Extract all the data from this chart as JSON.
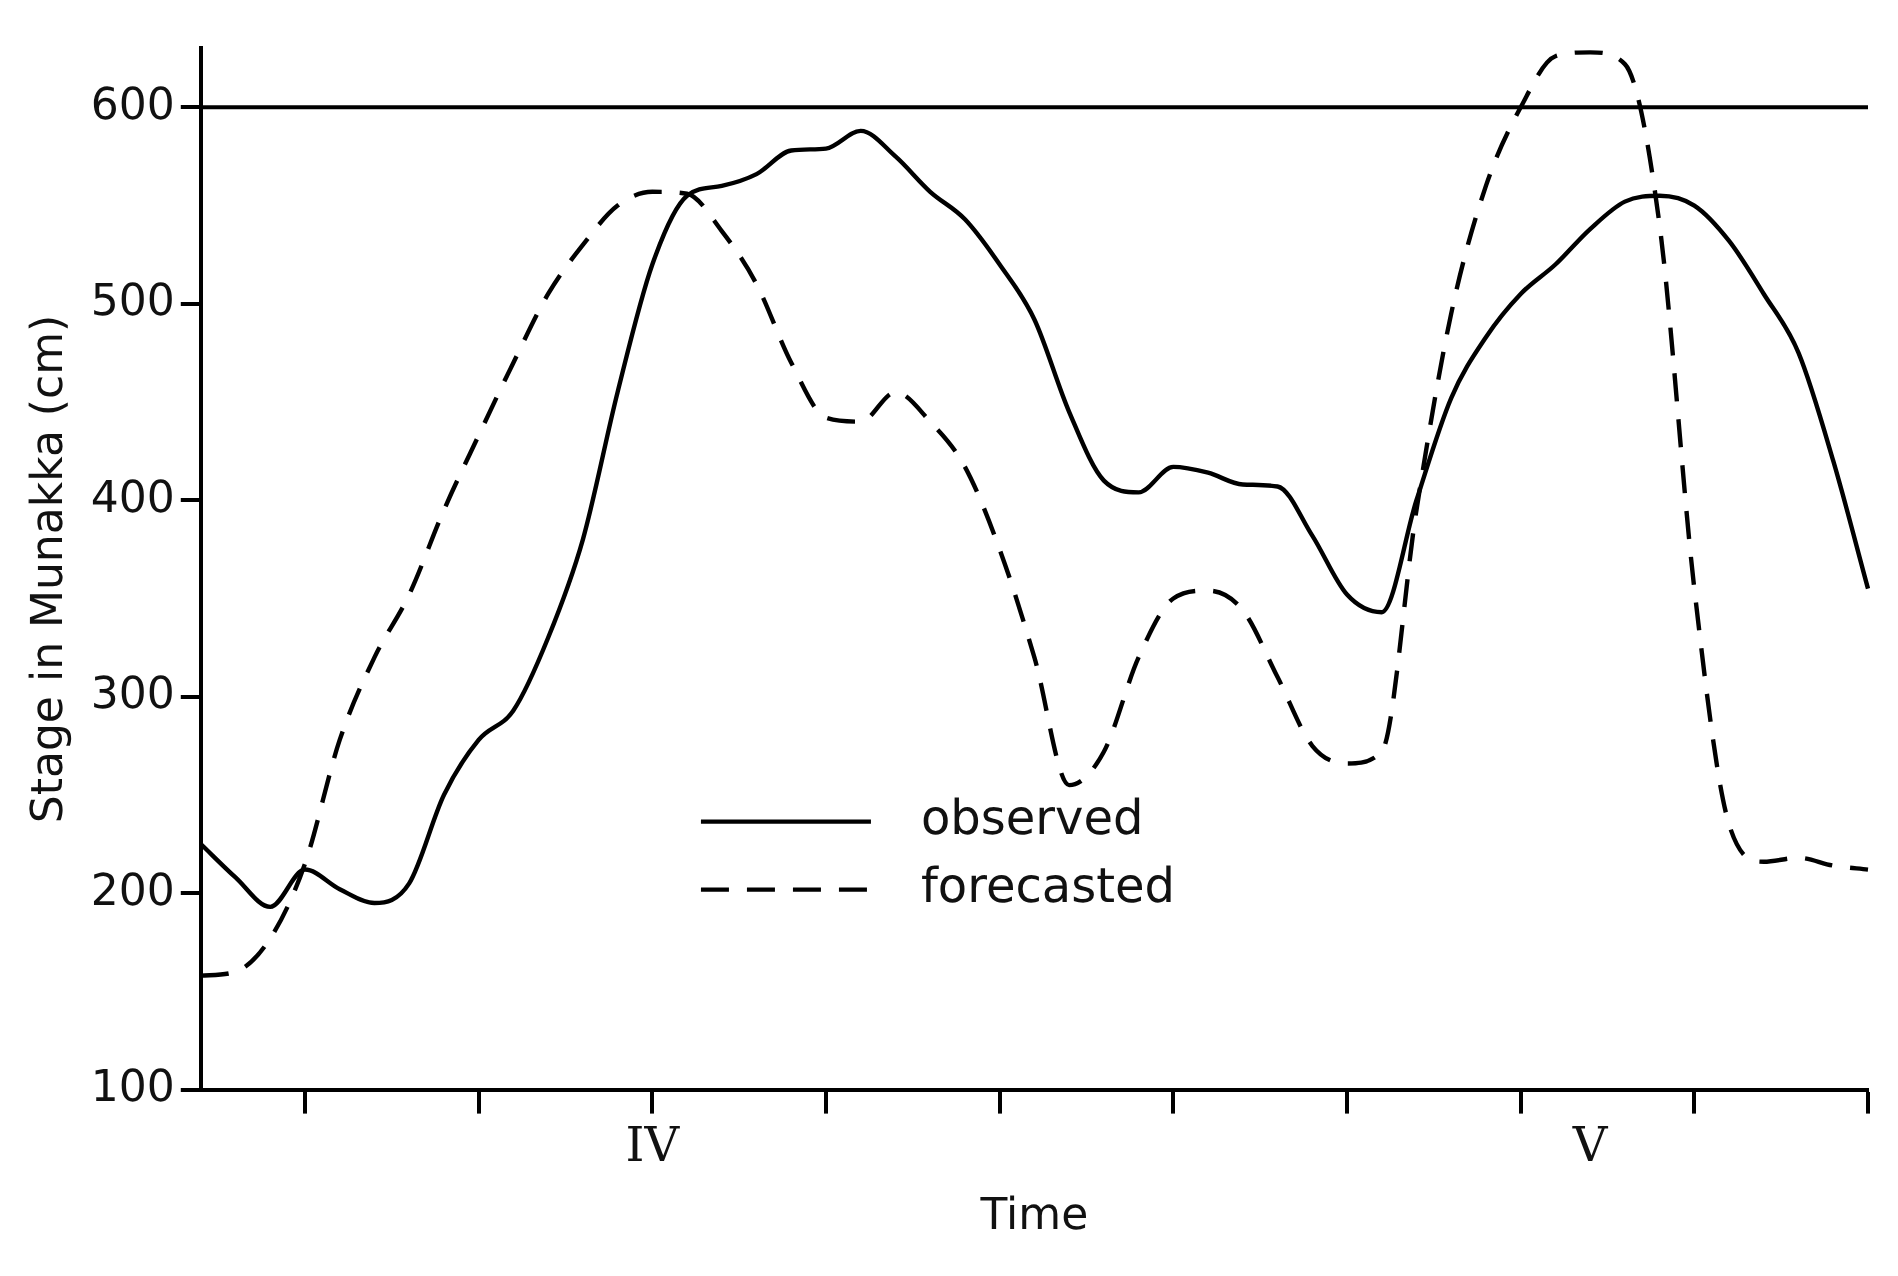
{
  "chart_data": {
    "type": "line",
    "xlabel": "Time",
    "ylabel": "Stage in Munakka (cm)",
    "categories": [
      null,
      null,
      null,
      null,
      null,
      null,
      null,
      null,
      null,
      null,
      null,
      null,
      null,
      "IV",
      null,
      null,
      null,
      null,
      null,
      null,
      null,
      null,
      null,
      null,
      null,
      null,
      null,
      null,
      null,
      null,
      null,
      null,
      null,
      null,
      null,
      null,
      null,
      null,
      null,
      null,
      "V",
      null,
      null,
      null,
      null,
      null,
      null,
      null,
      null
    ],
    "ylim": [
      100,
      630
    ],
    "yticks": [
      100,
      200,
      300,
      400,
      500,
      600
    ],
    "grid": false,
    "legend": "bottom",
    "marker": "none",
    "ref_lines": [
      {
        "axis": "y",
        "value": 600,
        "color": "#000000",
        "line_style": "solid"
      }
    ],
    "series": [
      {
        "name": "observed",
        "color": "#000000",
        "line_style": "solid",
        "values": [
          225,
          208,
          193,
          212,
          202,
          195,
          205,
          250,
          278,
          293,
          330,
          380,
          455,
          520,
          555,
          560,
          566,
          578,
          579,
          588,
          575,
          557,
          543,
          520,
          492,
          445,
          410,
          404,
          417,
          414,
          408,
          407,
          382,
          352,
          343,
          400,
          452,
          483,
          505,
          520,
          538,
          552,
          555,
          550,
          532,
          505,
          475,
          420,
          355
        ]
      },
      {
        "name": "forecasted",
        "color": "#000000",
        "line_style": "dashed",
        "values": [
          158,
          160,
          177,
          215,
          278,
          320,
          352,
          395,
          433,
          470,
          505,
          530,
          550,
          557,
          556,
          537,
          510,
          470,
          442,
          440,
          455,
          440,
          417,
          375,
          320,
          255,
          272,
          320,
          350,
          354,
          344,
          310,
          275,
          266,
          272,
          395,
          495,
          560,
          600,
          626,
          628,
          622,
          540,
          355,
          235,
          216,
          218,
          214,
          212
        ]
      }
    ]
  }
}
